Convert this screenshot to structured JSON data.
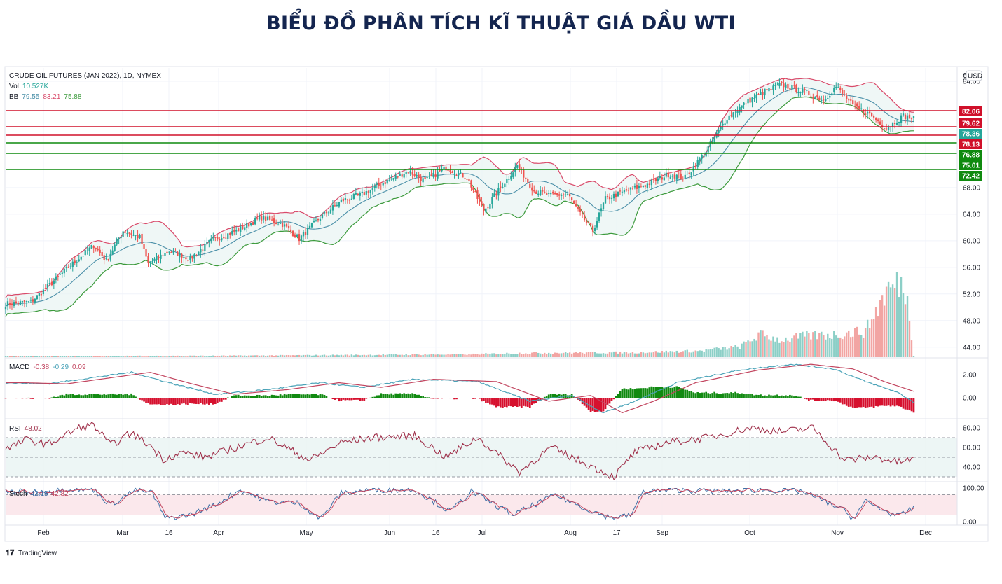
{
  "title": "BIỂU ĐỒ PHÂN TÍCH KĨ THUẬT GIÁ DẦU WTI",
  "colors": {
    "up": "#26a69a",
    "down": "#ef5350",
    "bb_upper": "#d94a6a",
    "bb_mid": "#4a8fa8",
    "bb_lower": "#3c9a3c",
    "resistance": "#d0102a",
    "support": "#0f8a0f",
    "macd_line": "#4aa3b8",
    "signal_line": "#c2455f",
    "macd_pos": "#118a11",
    "macd_neg": "#d6102e",
    "rsi_line": "#a0324c",
    "stoch_k": "#3c6fa6",
    "stoch_d": "#c2455f"
  },
  "chart_data": {
    "type": "candlestick",
    "symbol": "CRUDE OIL FUTURES (JAN 2022), 1D, NYMEX",
    "currency": "USD",
    "currency_prefix": "€",
    "branding": "TradingView",
    "indicators_legend": {
      "vol": {
        "label": "Vol",
        "value": "10.527K"
      },
      "bb": {
        "label": "BB",
        "values": [
          "79.55",
          "83.21",
          "75.88"
        ]
      },
      "macd": {
        "label": "MACD",
        "values": [
          "-0.38",
          "-0.29",
          "0.09"
        ]
      },
      "rsi": {
        "label": "RSI",
        "value": "48.02"
      },
      "stoch": {
        "label": "Stoch",
        "values": [
          "42.15",
          "42.82"
        ]
      }
    },
    "x_ticks": [
      "Feb",
      "Mar",
      "16",
      "Apr",
      "May",
      "Jun",
      "16",
      "Jul",
      "Aug",
      "17",
      "Sep",
      "Oct",
      "Nov",
      "Dec"
    ],
    "price_ticks": [
      "84.00",
      "68.00",
      "64.00",
      "60.00",
      "56.00",
      "52.00",
      "48.00",
      "44.00"
    ],
    "macd_ticks": [
      "2.00",
      "0.00"
    ],
    "rsi_ticks": [
      "80.00",
      "60.00",
      "40.00"
    ],
    "stoch_ticks": [
      "100.00",
      "0.00"
    ],
    "resistance_levels": [
      82.06,
      79.62,
      78.13
    ],
    "support_levels": [
      76.88,
      75.01,
      72.42
    ],
    "current_price": 78.36,
    "level_labels": {
      "r1": "82.06",
      "r2": "79.62",
      "cur": "78.36",
      "r3": "78.13",
      "s1": "76.88",
      "s2": "75.01",
      "s3": "72.42"
    },
    "price_ylim": [
      42.5,
      86
    ],
    "price_anchors": [
      [
        0,
        50.5
      ],
      [
        12,
        50.8
      ],
      [
        18,
        52.5
      ],
      [
        30,
        56
      ],
      [
        42,
        59.3
      ],
      [
        48,
        57
      ],
      [
        56,
        61.5
      ],
      [
        64,
        60.5
      ],
      [
        68,
        56.5
      ],
      [
        78,
        58.5
      ],
      [
        88,
        57.3
      ],
      [
        98,
        60
      ],
      [
        110,
        61.5
      ],
      [
        122,
        63.5
      ],
      [
        132,
        62.5
      ],
      [
        140,
        60.3
      ],
      [
        150,
        63.5
      ],
      [
        160,
        66
      ],
      [
        170,
        67
      ],
      [
        182,
        69
      ],
      [
        192,
        70.5
      ],
      [
        200,
        69
      ],
      [
        210,
        71
      ],
      [
        220,
        69.5
      ],
      [
        228,
        64.5
      ],
      [
        236,
        68
      ],
      [
        244,
        71.3
      ],
      [
        252,
        67.5
      ],
      [
        260,
        66.8
      ],
      [
        268,
        67
      ],
      [
        274,
        64
      ],
      [
        280,
        61.5
      ],
      [
        286,
        66.3
      ],
      [
        296,
        67.5
      ],
      [
        306,
        68.5
      ],
      [
        316,
        70
      ],
      [
        324,
        69.5
      ],
      [
        334,
        73.5
      ],
      [
        344,
        78.5
      ],
      [
        354,
        81
      ],
      [
        362,
        82.5
      ],
      [
        370,
        83.5
      ],
      [
        380,
        82.5
      ],
      [
        390,
        81.2
      ],
      [
        396,
        83.2
      ],
      [
        404,
        80.3
      ],
      [
        412,
        79
      ],
      [
        420,
        77
      ],
      [
        428,
        78.8
      ],
      [
        433,
        78.36
      ]
    ],
    "volume_anchors": [
      [
        0,
        0.2
      ],
      [
        100,
        0.3
      ],
      [
        220,
        0.6
      ],
      [
        250,
        0.9
      ],
      [
        300,
        1.0
      ],
      [
        330,
        1.3
      ],
      [
        350,
        2.2
      ],
      [
        360,
        4.8
      ],
      [
        370,
        3.6
      ],
      [
        382,
        4.5
      ],
      [
        395,
        4.8
      ],
      [
        410,
        5.5
      ],
      [
        420,
        14
      ],
      [
        426,
        15.5
      ],
      [
        429,
        14.5
      ],
      [
        431,
        8.5
      ],
      [
        433,
        0.3
      ]
    ],
    "macd_anchors": [
      [
        0,
        1.3
      ],
      [
        20,
        1.2
      ],
      [
        40,
        1.7
      ],
      [
        60,
        2.2
      ],
      [
        80,
        1.2
      ],
      [
        100,
        0.3
      ],
      [
        125,
        0.7
      ],
      [
        150,
        1.3
      ],
      [
        170,
        0.9
      ],
      [
        195,
        1.6
      ],
      [
        225,
        1.4
      ],
      [
        250,
        -0.3
      ],
      [
        270,
        0.2
      ],
      [
        285,
        -1.3
      ],
      [
        300,
        -0.3
      ],
      [
        320,
        1.3
      ],
      [
        350,
        2.4
      ],
      [
        375,
        2.9
      ],
      [
        395,
        2.5
      ],
      [
        410,
        1.4
      ],
      [
        425,
        0.5
      ],
      [
        433,
        -0.38
      ]
    ],
    "rsi_anchors": [
      [
        0,
        58
      ],
      [
        10,
        68
      ],
      [
        20,
        63
      ],
      [
        35,
        80
      ],
      [
        42,
        83
      ],
      [
        50,
        62
      ],
      [
        60,
        75
      ],
      [
        70,
        60
      ],
      [
        75,
        48
      ],
      [
        85,
        55
      ],
      [
        95,
        50
      ],
      [
        110,
        60
      ],
      [
        125,
        70
      ],
      [
        145,
        47
      ],
      [
        160,
        65
      ],
      [
        175,
        70
      ],
      [
        195,
        72
      ],
      [
        210,
        50
      ],
      [
        225,
        70
      ],
      [
        245,
        35
      ],
      [
        260,
        60
      ],
      [
        275,
        45
      ],
      [
        290,
        30
      ],
      [
        300,
        55
      ],
      [
        315,
        65
      ],
      [
        335,
        70
      ],
      [
        355,
        80
      ],
      [
        370,
        76
      ],
      [
        385,
        80
      ],
      [
        400,
        47
      ],
      [
        415,
        50
      ],
      [
        425,
        45
      ],
      [
        433,
        48.02
      ]
    ],
    "stoch_anchors": [
      [
        0,
        90
      ],
      [
        15,
        88
      ],
      [
        30,
        98
      ],
      [
        42,
        95
      ],
      [
        50,
        50
      ],
      [
        62,
        95
      ],
      [
        70,
        85
      ],
      [
        76,
        10
      ],
      [
        88,
        20
      ],
      [
        100,
        50
      ],
      [
        112,
        95
      ],
      [
        125,
        60
      ],
      [
        140,
        55
      ],
      [
        150,
        8
      ],
      [
        160,
        85
      ],
      [
        175,
        95
      ],
      [
        195,
        95
      ],
      [
        212,
        30
      ],
      [
        222,
        90
      ],
      [
        242,
        20
      ],
      [
        262,
        80
      ],
      [
        276,
        40
      ],
      [
        288,
        12
      ],
      [
        298,
        18
      ],
      [
        304,
        90
      ],
      [
        320,
        95
      ],
      [
        340,
        90
      ],
      [
        360,
        95
      ],
      [
        380,
        90
      ],
      [
        398,
        40
      ],
      [
        404,
        10
      ],
      [
        410,
        60
      ],
      [
        420,
        30
      ],
      [
        426,
        15
      ],
      [
        433,
        42.15
      ]
    ]
  }
}
